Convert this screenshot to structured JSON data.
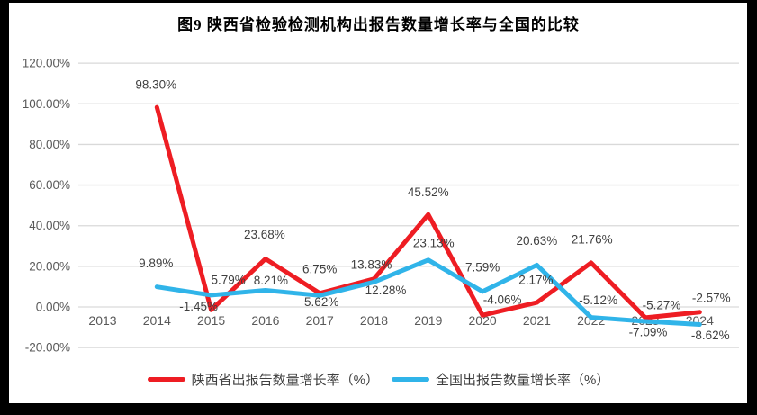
{
  "chart_data": {
    "type": "line",
    "title": "图9 陕西省检验检测机构出报告数量增长率与全国的比较",
    "categories": [
      "2013",
      "2014",
      "2015",
      "2016",
      "2017",
      "2018",
      "2019",
      "2020",
      "2021",
      "2022",
      "2023",
      "2024"
    ],
    "series": [
      {
        "name": "陕西省出报告数量增长率（%）",
        "color": "#ee1d23",
        "values": [
          null,
          98.3,
          -1.45,
          23.68,
          6.75,
          13.83,
          45.52,
          -4.06,
          2.17,
          21.76,
          -5.27,
          -2.57
        ]
      },
      {
        "name": "全国出报告数量增长率（%）",
        "color": "#30b4e9",
        "values": [
          null,
          9.89,
          5.79,
          8.21,
          5.62,
          12.28,
          23.13,
          7.59,
          20.63,
          -5.12,
          -7.09,
          -8.62
        ]
      }
    ],
    "xlabel": "",
    "ylabel": "",
    "ylim": [
      -20,
      120
    ],
    "ytick_step": 20,
    "ytick_labels": [
      "-20.00%",
      "0.00%",
      "20.00%",
      "40.00%",
      "60.00%",
      "80.00%",
      "100.00%",
      "120.00%"
    ],
    "data_labels": true,
    "grid": true,
    "legend_position": "bottom",
    "colors": {
      "grid": "#d9d9d9",
      "axis_text": "#595959",
      "data_label_text": "#404040",
      "frame_border": "#000000",
      "background": "#ffffff"
    }
  }
}
